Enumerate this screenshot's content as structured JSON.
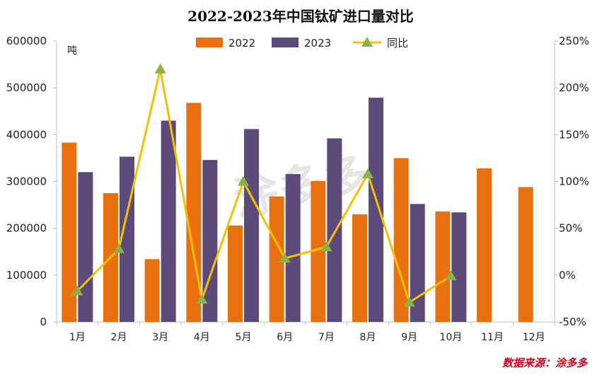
{
  "chart_data": {
    "type": "bar",
    "title": "2022-2023年中国钛矿进口量对比",
    "categories": [
      "1月",
      "2月",
      "3月",
      "4月",
      "5月",
      "6月",
      "7月",
      "8月",
      "9月",
      "10月",
      "11月",
      "12月"
    ],
    "series": [
      {
        "name": "2022",
        "type": "bar",
        "axis": "left",
        "color": "#e8700f",
        "values": [
          383000,
          275000,
          134000,
          468000,
          206000,
          268000,
          301000,
          230000,
          350000,
          236000,
          328000,
          288000
        ]
      },
      {
        "name": "2023",
        "type": "bar",
        "axis": "left",
        "color": "#5c4a7a",
        "values": [
          320000,
          353000,
          430000,
          346000,
          412000,
          316000,
          392000,
          479000,
          252000,
          234000,
          null,
          null
        ]
      },
      {
        "name": "同比",
        "type": "line",
        "axis": "right",
        "color": "#f5c000",
        "marker_color": "#8cb04a",
        "values": [
          -0.17,
          0.28,
          2.2,
          -0.26,
          1.0,
          0.18,
          0.3,
          1.08,
          -0.29,
          -0.01,
          null,
          null
        ]
      }
    ],
    "y_left": {
      "label": "吨",
      "ylim": [
        0,
        600000
      ],
      "ticks": [
        "0",
        "100000",
        "200000",
        "300000",
        "400000",
        "500000",
        "600000"
      ]
    },
    "y_right": {
      "ylim": [
        -0.5,
        2.5
      ],
      "ticks": [
        "-50%",
        "0%",
        "50%",
        "100%",
        "150%",
        "200%",
        "250%"
      ]
    },
    "legend_position": "top-center",
    "grid": false
  },
  "source_text": "数据来源：涂多多",
  "watermark_text": "涂多多"
}
